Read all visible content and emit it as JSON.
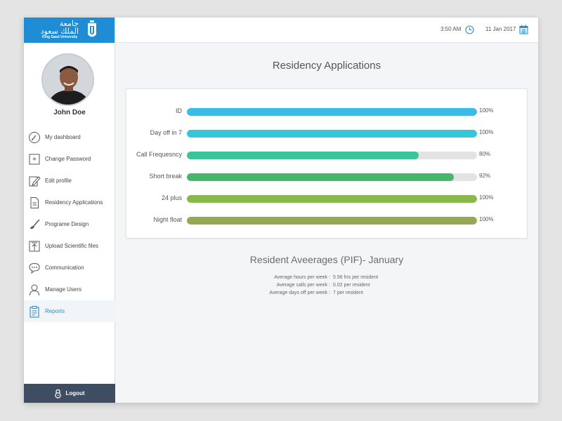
{
  "brand": {
    "name_ar": "جامعة الملك سعود",
    "name_en": "King Saud University",
    "color": "#1f8dd6"
  },
  "user": {
    "name": "John Doe"
  },
  "header": {
    "time": "3:50 AM",
    "date": "11 Jan 2017",
    "accent": "#2a8bd1"
  },
  "sidebar": {
    "items": [
      {
        "label": "My dashboard",
        "icon": "dashboard-icon",
        "active": false
      },
      {
        "label": "Change Password",
        "icon": "password-icon",
        "active": false
      },
      {
        "label": "Edit profile",
        "icon": "edit-icon",
        "active": false
      },
      {
        "label": "Residency Applications",
        "icon": "document-icon",
        "active": false
      },
      {
        "label": "Programe Design",
        "icon": "brush-icon",
        "active": false
      },
      {
        "label": "Upload Scientific files",
        "icon": "upload-icon",
        "active": false
      },
      {
        "label": "Communication",
        "icon": "chat-icon",
        "active": false
      },
      {
        "label": "Manage Users",
        "icon": "user-icon",
        "active": false
      },
      {
        "label": "Reports",
        "icon": "clipboard-icon",
        "active": true
      }
    ],
    "logout_label": "Logout"
  },
  "main": {
    "title": "Residency Applications",
    "bars": [
      {
        "label": "ID",
        "value": 100,
        "pct": "100%",
        "color": "#3dbbe8"
      },
      {
        "label": "Day off in 7",
        "value": 100,
        "pct": "100%",
        "color": "#36c7d6"
      },
      {
        "label": "Call Frequesncy",
        "value": 80,
        "pct": "80%",
        "color": "#3cc29c"
      },
      {
        "label": "Short break",
        "value": 92,
        "pct": "92%",
        "color": "#47b66a"
      },
      {
        "label": "24 plus",
        "value": 100,
        "pct": "100%",
        "color": "#8ab84a"
      },
      {
        "label": "Night float",
        "value": 100,
        "pct": "100%",
        "color": "#97a855"
      }
    ],
    "averages_title": "Resident Aveerages (PIF)- January",
    "averages": [
      {
        "label": "Average hours per week",
        "value": "5.56 hrs per resident"
      },
      {
        "label": "Average calls per week",
        "value": "0.02 per resident"
      },
      {
        "label": "Average days off per week",
        "value": "7 per resident"
      }
    ]
  }
}
